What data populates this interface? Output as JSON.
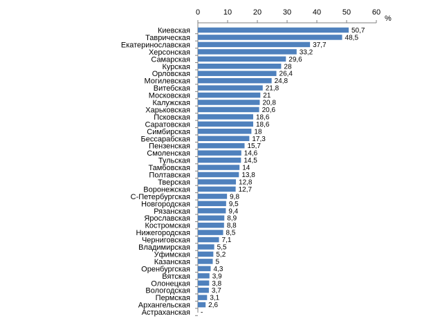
{
  "chart_data": {
    "type": "bar",
    "orientation": "horizontal",
    "unit": "%",
    "xlim": [
      0,
      60
    ],
    "ticks": [
      "0",
      "10",
      "20",
      "30",
      "40",
      "50",
      "60"
    ],
    "tick_values": [
      0,
      10,
      20,
      30,
      40,
      50,
      60
    ],
    "bar_color": "#4f81bd",
    "grid": false,
    "categories": [
      "Киевская",
      "Таврическая",
      "Екатеринославская",
      "Херсонская",
      "Самарская",
      "Курская",
      "Орловская",
      "Могилевская",
      "Витебская",
      "Московская",
      "Калужская",
      "Харьковская",
      "Псковская",
      "Саратовская",
      "Симбирская",
      "Бессарабская",
      "Пензенская",
      "Смоленская",
      "Тульская",
      "Тамбовская",
      "Полтавская",
      "Тверская",
      "Воронежская",
      "С-Петербургская",
      "Новгородская",
      "Рязанская",
      "Ярославская",
      "Костромская",
      "Нижегородская",
      "Черниговская",
      "Владимирская",
      "Уфимская",
      "Казанская",
      "Оренбургская",
      "Вятская",
      "Олонецкая",
      "Вологодская",
      "Пермская",
      "Архангельская",
      "Астраханская"
    ],
    "values": [
      50.7,
      48.5,
      37.7,
      33.2,
      29.6,
      28,
      26.4,
      24.8,
      21.8,
      21,
      20.8,
      20.6,
      18.6,
      18.6,
      18,
      17.3,
      15.7,
      14.6,
      14.5,
      14,
      13.8,
      12.8,
      12.7,
      9.8,
      9.5,
      9.4,
      8.9,
      8.8,
      8.5,
      7.1,
      5.5,
      5.2,
      5,
      4.3,
      3.9,
      3.8,
      3.7,
      3.1,
      2.6,
      null
    ],
    "value_labels": [
      "50,7",
      "48,5",
      "37,7",
      "33,2",
      "29,6",
      "28",
      "26,4",
      "24,8",
      "21,8",
      "21",
      "20,8",
      "20,6",
      "18,6",
      "18,6",
      "18",
      "17,3",
      "15,7",
      "14,6",
      "14,5",
      "14",
      "13,8",
      "12,8",
      "12,7",
      "9,8",
      "9,5",
      "9,4",
      "8,9",
      "8,8",
      "8,5",
      "7,1",
      "5,5",
      "5,2",
      "5",
      "4,3",
      "3,9",
      "3,8",
      "3,7",
      "3,1",
      "2,6",
      "-"
    ]
  }
}
